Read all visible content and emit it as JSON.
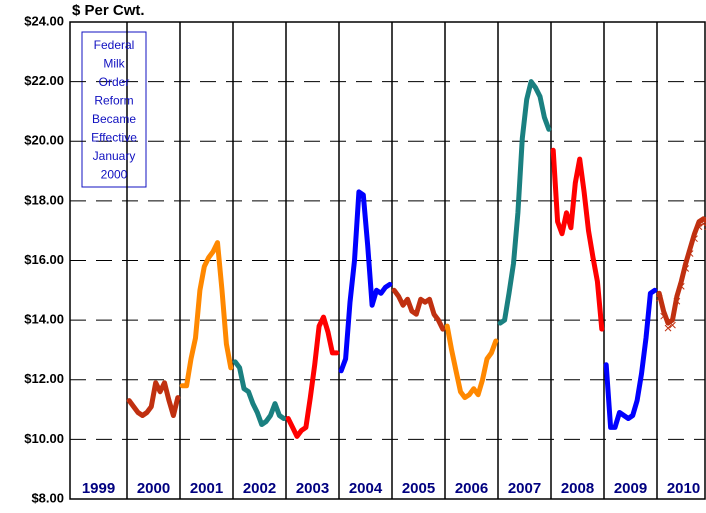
{
  "chart_data": {
    "type": "line",
    "y_label": "$ Per Cwt.",
    "annotation": [
      "Federal",
      "Milk",
      "Order",
      "Reform",
      "Became",
      "Effective",
      "January",
      "2000"
    ],
    "categories": [
      "1999",
      "2000",
      "2001",
      "2002",
      "2003",
      "2004",
      "2005",
      "2006",
      "2007",
      "2008",
      "2009",
      "2010"
    ],
    "ylim": [
      8,
      24
    ],
    "yticks": [
      {
        "value": 8,
        "label": "$8.00"
      },
      {
        "value": 10,
        "label": "$10.00"
      },
      {
        "value": 12,
        "label": "$12.00"
      },
      {
        "value": 14,
        "label": "$14.00"
      },
      {
        "value": 16,
        "label": "$16.00"
      },
      {
        "value": 18,
        "label": "$18.00"
      },
      {
        "value": 20,
        "label": "$20.00"
      },
      {
        "value": 22,
        "label": "$22.00"
      },
      {
        "value": 24,
        "label": "$24.00"
      }
    ],
    "grid": true,
    "series": [
      {
        "color": "#c03010",
        "values": [
          11.3,
          11.1,
          10.9,
          10.8,
          10.9,
          11.1,
          11.9,
          11.6,
          11.9,
          11.3,
          10.8,
          11.4
        ]
      },
      {
        "color": "#ff8800",
        "values": [
          11.8,
          11.8,
          12.7,
          13.4,
          15.0,
          15.8,
          16.1,
          16.3,
          16.6,
          15.0,
          13.2,
          12.4
        ]
      },
      {
        "color": "#1a8080",
        "values": [
          12.6,
          12.4,
          11.7,
          11.6,
          11.2,
          10.9,
          10.5,
          10.6,
          10.8,
          11.2,
          10.8,
          10.7
        ]
      },
      {
        "color": "#ff0000",
        "values": [
          10.7,
          10.4,
          10.1,
          10.3,
          10.4,
          11.4,
          12.5,
          13.8,
          14.1,
          13.6,
          12.9,
          12.9
        ]
      },
      {
        "color": "#0000ff",
        "values": [
          12.3,
          12.7,
          14.6,
          16.0,
          18.3,
          18.2,
          16.5,
          14.5,
          15.0,
          14.9,
          15.1,
          15.2
        ]
      },
      {
        "color": "#c03010",
        "values": [
          15.0,
          14.8,
          14.5,
          14.7,
          14.3,
          14.2,
          14.7,
          14.6,
          14.7,
          14.2,
          14.0,
          13.7
        ]
      },
      {
        "color": "#ff8800",
        "values": [
          13.8,
          13.0,
          12.3,
          11.6,
          11.4,
          11.5,
          11.7,
          11.5,
          12.0,
          12.7,
          12.9,
          13.3
        ]
      },
      {
        "color": "#1a8080",
        "values": [
          13.9,
          14.0,
          14.9,
          15.9,
          17.6,
          20.1,
          21.4,
          22.0,
          21.8,
          21.5,
          20.8,
          20.4
        ]
      },
      {
        "color": "#ff0000",
        "values": [
          19.7,
          17.3,
          16.9,
          17.6,
          17.1,
          18.6,
          19.4,
          18.3,
          17.0,
          16.1,
          15.3,
          13.7
        ]
      },
      {
        "color": "#0000ff",
        "values": [
          12.5,
          10.4,
          10.4,
          10.9,
          10.8,
          10.7,
          10.8,
          11.3,
          12.2,
          13.4,
          14.9,
          15.0
        ]
      },
      {
        "color": "#c03010",
        "marker": "x",
        "values": [
          14.9,
          14.3,
          13.9,
          14.0,
          14.8,
          15.3,
          15.9,
          16.4,
          16.9,
          17.3,
          17.4,
          17.3
        ]
      }
    ]
  }
}
